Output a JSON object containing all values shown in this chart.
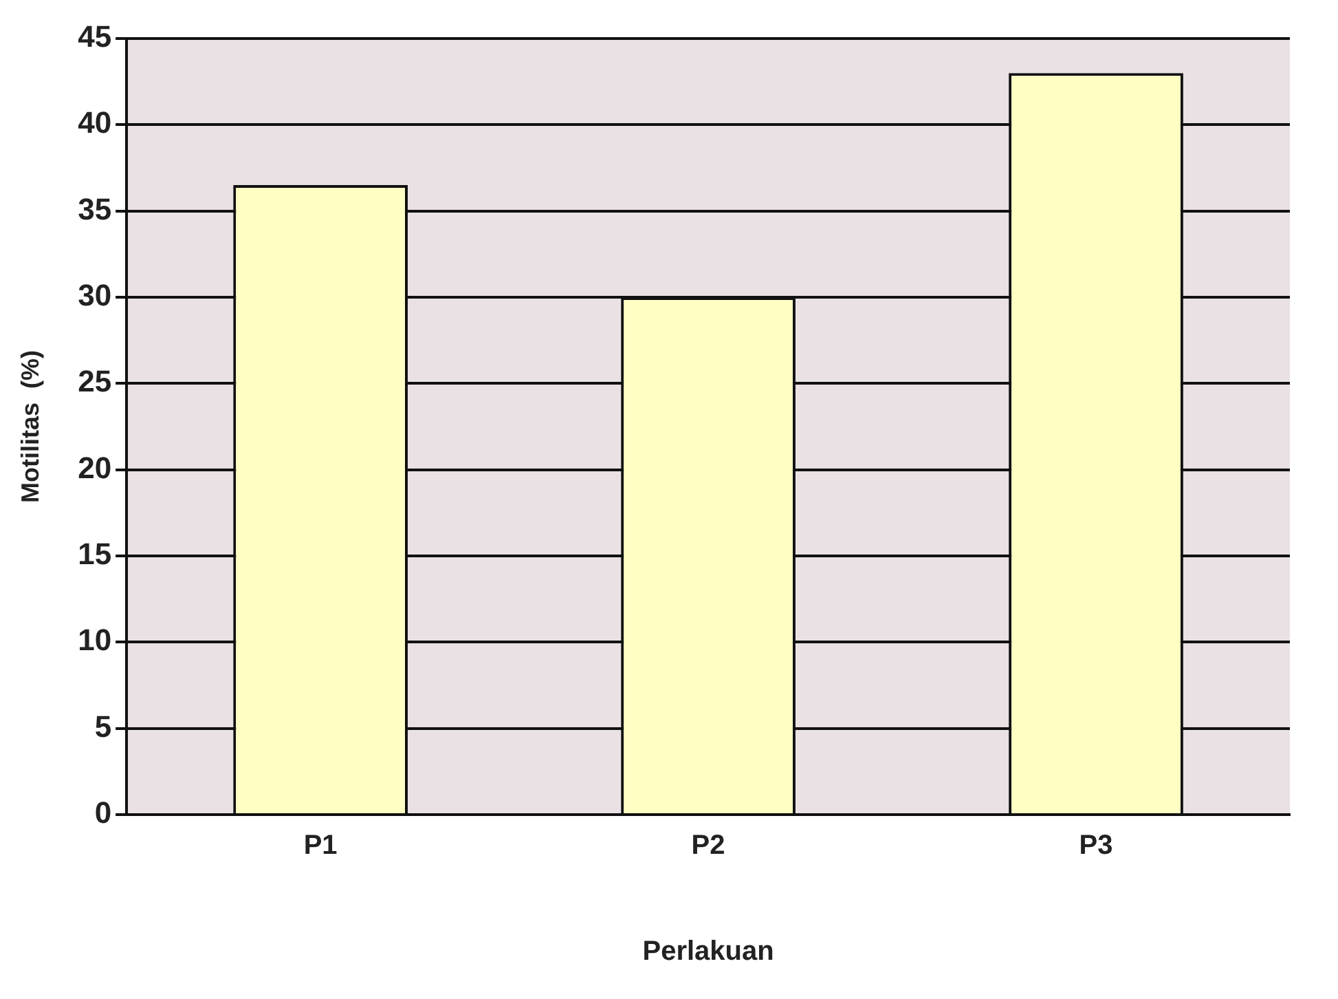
{
  "chart_data": {
    "type": "bar",
    "xlabel": "Perlakuan",
    "ylabel": "Motilitas  (%)",
    "categories": [
      "P1",
      "P2",
      "P3"
    ],
    "values": [
      36.5,
      30,
      43
    ],
    "color": "#ffffc4",
    "ylim": [
      0,
      45
    ],
    "yticks": [
      0,
      5,
      10,
      15,
      20,
      25,
      30,
      35,
      40,
      45
    ],
    "grid": "y"
  }
}
